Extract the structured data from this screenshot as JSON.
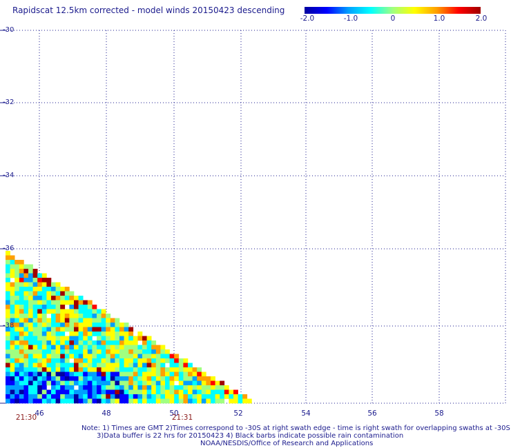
{
  "title": "Rapidscat 12.5km corrected - model winds 20150423 descending",
  "colorbar": {
    "labels": [
      "-2.0",
      "-1.0",
      "0",
      "1.0",
      "2.0"
    ],
    "min": -2.0,
    "max": 2.0,
    "colors": [
      "#0000a0",
      "#0000ff",
      "#00a0ff",
      "#00ffff",
      "#a0ff80",
      "#ffff00",
      "#ffa000",
      "#ff0000",
      "#a00000"
    ]
  },
  "axes": {
    "y_labels": [
      "-30",
      "-32",
      "-34",
      "-36",
      "-38"
    ],
    "x_labels": [
      "46",
      "48",
      "50",
      "52",
      "54",
      "56",
      "58"
    ],
    "time_labels": [
      "21:30",
      "21:31"
    ]
  },
  "notes": {
    "line1": "Note: 1) Times are GMT 2)Times correspond to -30S at right swath edge - time is right swath for overlapping swaths at -30S",
    "line2": "3)Data buffer is 22 hrs for 20150423 4) Black barbs indicate possible rain contamination",
    "line3": "NOAA/NESDIS/Office of Research and Applications"
  }
}
